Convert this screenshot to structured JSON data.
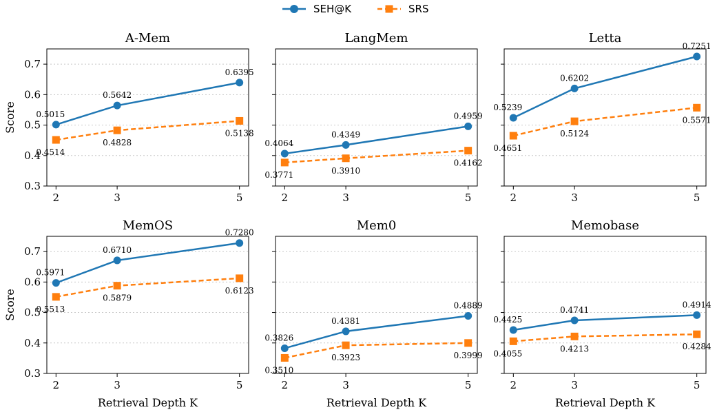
{
  "legend": [
    {
      "name": "SEH@K",
      "color": "#1f77b4",
      "marker": "circle",
      "dash": false
    },
    {
      "name": "SRS",
      "color": "#ff7f0e",
      "marker": "square",
      "dash": true
    }
  ],
  "xlabel": "Retrieval Depth K",
  "ylabel": "Score",
  "chart_data": [
    {
      "type": "line",
      "title": "A-Mem",
      "x": [
        2,
        3,
        5
      ],
      "ylim": [
        0.3,
        0.75
      ],
      "yticks": [
        0.3,
        0.4,
        0.5,
        0.6,
        0.7
      ],
      "grid": "y",
      "series": [
        {
          "name": "SEH@K",
          "values": [
            0.5015,
            0.5642,
            0.6395
          ],
          "labels": [
            "0.5015",
            "0.5642",
            "0.6395"
          ]
        },
        {
          "name": "SRS",
          "values": [
            0.4514,
            0.4828,
            0.5138
          ],
          "labels": [
            "0.4514",
            "0.4828",
            "0.5138"
          ]
        }
      ]
    },
    {
      "type": "line",
      "title": "LangMem",
      "x": [
        2,
        3,
        5
      ],
      "ylim": [
        0.3,
        0.75
      ],
      "yticks": [
        0.3,
        0.4,
        0.5,
        0.6,
        0.7
      ],
      "grid": "y",
      "series": [
        {
          "name": "SEH@K",
          "values": [
            0.4064,
            0.4349,
            0.4959
          ],
          "labels": [
            "0.4064",
            "0.4349",
            "0.4959"
          ]
        },
        {
          "name": "SRS",
          "values": [
            0.3771,
            0.391,
            0.4162
          ],
          "labels": [
            "0.3771",
            "0.3910",
            "0.4162"
          ]
        }
      ]
    },
    {
      "type": "line",
      "title": "Letta",
      "x": [
        2,
        3,
        5
      ],
      "ylim": [
        0.3,
        0.75
      ],
      "yticks": [
        0.3,
        0.4,
        0.5,
        0.6,
        0.7
      ],
      "grid": "y",
      "series": [
        {
          "name": "SEH@K",
          "values": [
            0.5239,
            0.6202,
            0.7251
          ],
          "labels": [
            "0.5239",
            "0.6202",
            "0.7251"
          ]
        },
        {
          "name": "SRS",
          "values": [
            0.4651,
            0.5124,
            0.5571
          ],
          "labels": [
            "0.4651",
            "0.5124",
            "0.5571"
          ]
        }
      ]
    },
    {
      "type": "line",
      "title": "MemOS",
      "x": [
        2,
        3,
        5
      ],
      "ylim": [
        0.3,
        0.75
      ],
      "yticks": [
        0.3,
        0.4,
        0.5,
        0.6,
        0.7
      ],
      "grid": "y",
      "series": [
        {
          "name": "SEH@K",
          "values": [
            0.5971,
            0.671,
            0.728
          ],
          "labels": [
            "0.5971",
            "0.6710",
            "0.7280"
          ]
        },
        {
          "name": "SRS",
          "values": [
            0.5513,
            0.5879,
            0.6123
          ],
          "labels": [
            "0.5513",
            "0.5879",
            "0.6123"
          ]
        }
      ]
    },
    {
      "type": "line",
      "title": "Mem0",
      "x": [
        2,
        3,
        5
      ],
      "ylim": [
        0.3,
        0.75
      ],
      "yticks": [
        0.3,
        0.4,
        0.5,
        0.6,
        0.7
      ],
      "grid": "y",
      "series": [
        {
          "name": "SEH@K",
          "values": [
            0.3826,
            0.4381,
            0.4889
          ],
          "labels": [
            "0.3826",
            "0.4381",
            "0.4889"
          ]
        },
        {
          "name": "SRS",
          "values": [
            0.351,
            0.3923,
            0.3999
          ],
          "labels": [
            "0.3510",
            "0.3923",
            "0.3999"
          ]
        }
      ]
    },
    {
      "type": "line",
      "title": "Memobase",
      "x": [
        2,
        3,
        5
      ],
      "ylim": [
        0.3,
        0.75
      ],
      "yticks": [
        0.3,
        0.4,
        0.5,
        0.6,
        0.7
      ],
      "grid": "y",
      "series": [
        {
          "name": "SEH@K",
          "values": [
            0.4425,
            0.4741,
            0.4914
          ],
          "labels": [
            "0.4425",
            "0.4741",
            "0.4914"
          ]
        },
        {
          "name": "SRS",
          "values": [
            0.4055,
            0.4213,
            0.4284
          ],
          "labels": [
            "0.4055",
            "0.4213",
            "0.4284"
          ]
        }
      ]
    }
  ]
}
